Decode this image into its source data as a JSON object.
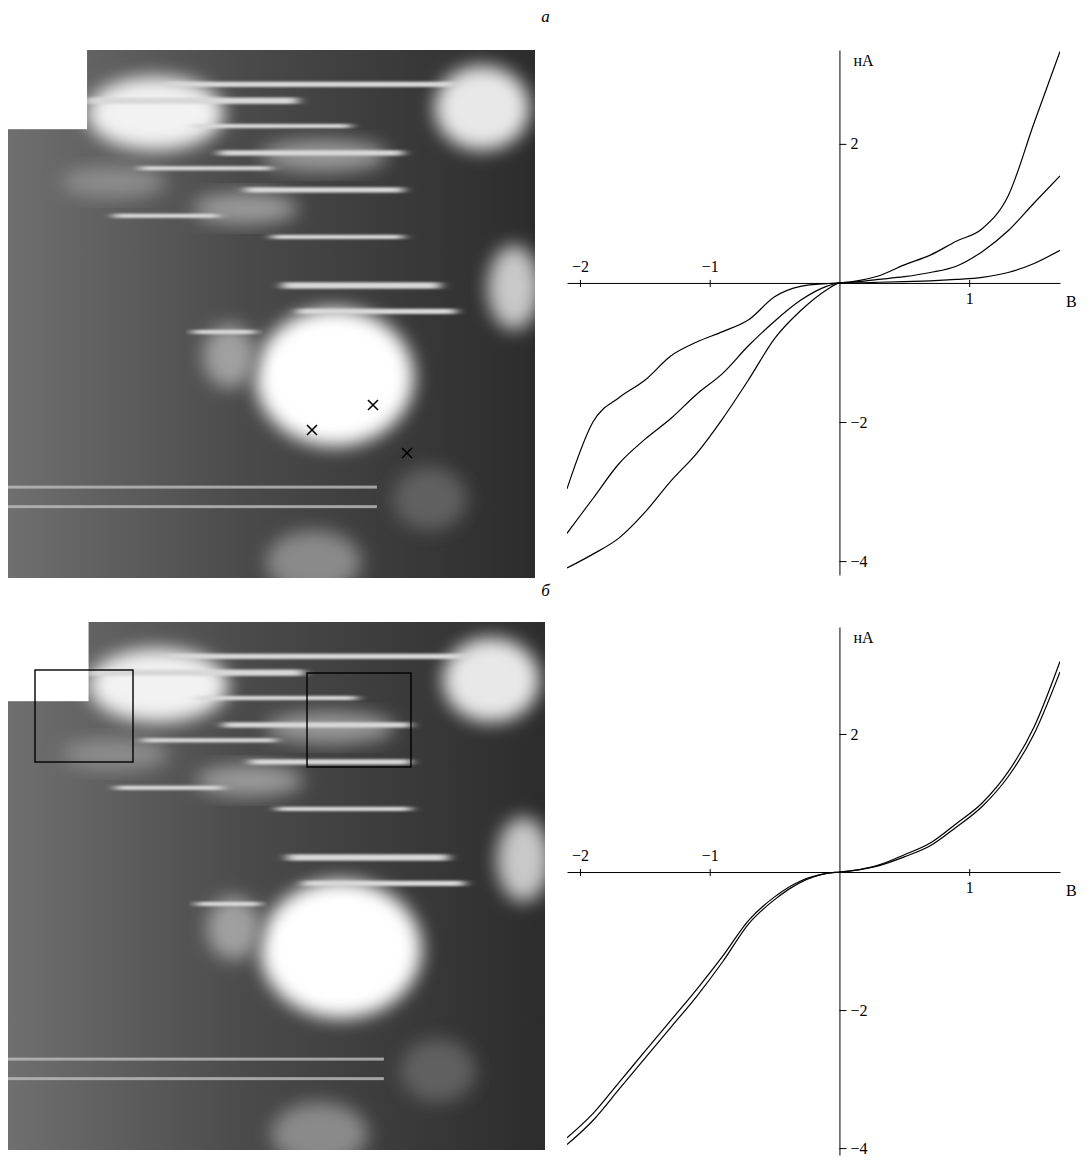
{
  "chart_data": [
    {
      "type": "line",
      "title": "а",
      "x_label": "В",
      "y_label": "нА",
      "x": [
        -2.1,
        -1.9,
        -1.7,
        -1.5,
        -1.3,
        -1.1,
        -0.9,
        -0.7,
        -0.5,
        -0.3,
        -0.1,
        0,
        0.1,
        0.3,
        0.5,
        0.7,
        0.9,
        1.1,
        1.3,
        1.5,
        1.7
      ],
      "xlim": [
        -2.1,
        1.7
      ],
      "ylim": [
        -4.2,
        3.35
      ],
      "xticks": [
        {
          "value": -2,
          "label": "−2"
        },
        {
          "value": -1,
          "label": "−1"
        },
        1
      ],
      "yticks": [
        2,
        {
          "value": -2,
          "label": "−2"
        },
        {
          "value": -4,
          "label": "−4"
        }
      ],
      "series": [
        {
          "color": "#000000",
          "values": [
            -4.1,
            -3.9,
            -3.67,
            -3.3,
            -2.85,
            -2.45,
            -1.95,
            -1.39,
            -0.8,
            -0.4,
            -0.1,
            0,
            0.02,
            0.1,
            0.26,
            0.4,
            0.6,
            0.78,
            1.25,
            2.3,
            3.33
          ]
        },
        {
          "color": "#000000",
          "values": [
            -3.6,
            -3.1,
            -2.6,
            -2.25,
            -1.95,
            -1.6,
            -1.3,
            -0.9,
            -0.55,
            -0.25,
            -0.05,
            0,
            0.01,
            0.05,
            0.09,
            0.15,
            0.24,
            0.45,
            0.75,
            1.15,
            1.54
          ]
        },
        {
          "color": "#000000",
          "values": [
            -2.96,
            -2.0,
            -1.65,
            -1.4,
            -1.05,
            -0.85,
            -0.7,
            -0.53,
            -0.2,
            -0.05,
            -0.01,
            0,
            0,
            0.01,
            0.02,
            0.03,
            0.05,
            0.08,
            0.15,
            0.28,
            0.47
          ]
        }
      ]
    },
    {
      "type": "line",
      "title": "б",
      "x_label": "В",
      "y_label": "нА",
      "x": [
        -2.1,
        -1.9,
        -1.7,
        -1.5,
        -1.3,
        -1.1,
        -0.9,
        -0.7,
        -0.5,
        -0.3,
        -0.1,
        0,
        0.1,
        0.3,
        0.5,
        0.7,
        0.9,
        1.1,
        1.3,
        1.5,
        1.7
      ],
      "xlim": [
        -2.1,
        1.7
      ],
      "ylim": [
        -4.1,
        3.55
      ],
      "xticks": [
        {
          "value": -2,
          "label": "−2"
        },
        {
          "value": -1,
          "label": "−1"
        },
        1
      ],
      "yticks": [
        2,
        {
          "value": -2,
          "label": "−2"
        },
        {
          "value": -4,
          "label": "−4"
        }
      ],
      "series": [
        {
          "color": "#000000",
          "values": [
            -3.95,
            -3.6,
            -3.15,
            -2.7,
            -2.25,
            -1.8,
            -1.3,
            -0.75,
            -0.4,
            -0.15,
            -0.02,
            0,
            0.02,
            0.1,
            0.25,
            0.42,
            0.7,
            1.0,
            1.45,
            2.1,
            3.05
          ]
        },
        {
          "color": "#000000",
          "values": [
            -3.85,
            -3.5,
            -3.05,
            -2.6,
            -2.15,
            -1.7,
            -1.22,
            -0.7,
            -0.36,
            -0.13,
            -0.02,
            0,
            0.02,
            0.09,
            0.22,
            0.38,
            0.65,
            0.95,
            1.38,
            2.0,
            2.9
          ]
        }
      ]
    }
  ]
}
